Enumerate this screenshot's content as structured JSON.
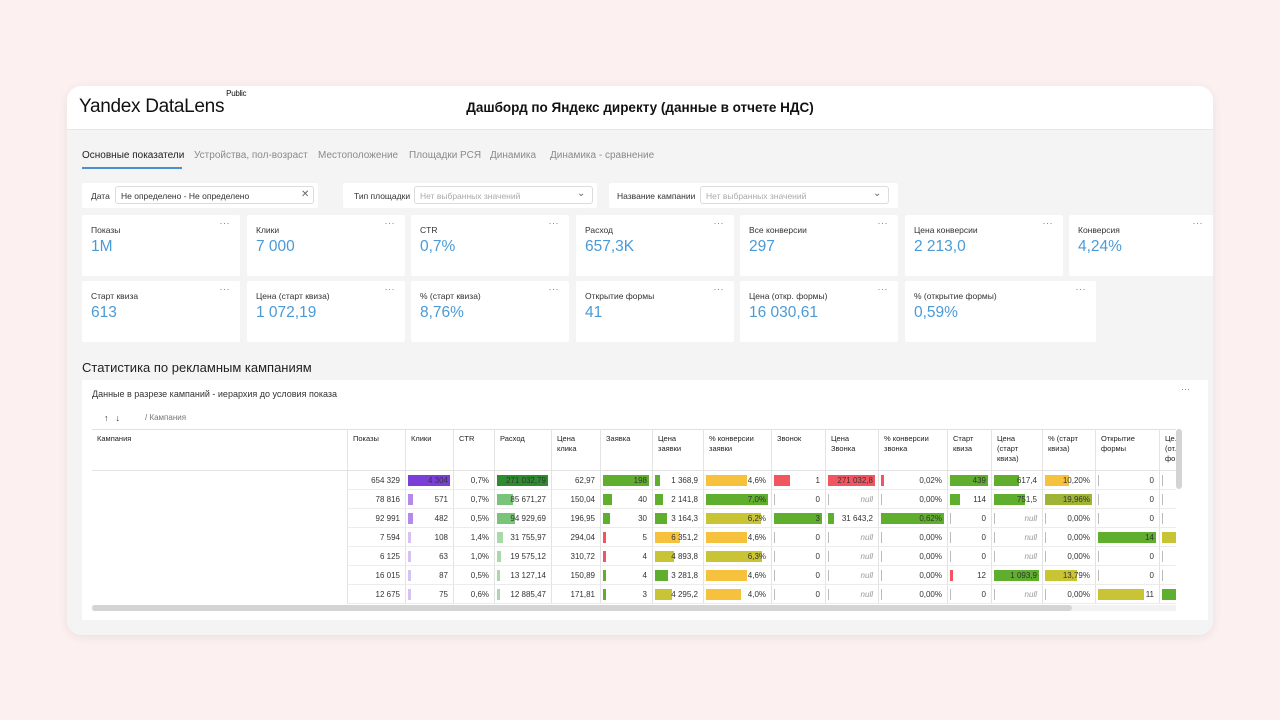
{
  "app": {
    "logo": "Yandex DataLens",
    "logo_badge": "Public",
    "dashboard_title": "Дашборд по Яндекс директу (данные в отчете НДС)"
  },
  "tabs": [
    {
      "label": "Основные показатели",
      "active": true
    },
    {
      "label": "Устройства, пол-возраст"
    },
    {
      "label": "Местоположение"
    },
    {
      "label": "Площадки РСЯ"
    },
    {
      "label": "Динамика"
    },
    {
      "label": "Динамика - сравнение"
    }
  ],
  "filters": {
    "date": {
      "label": "Дата",
      "value": "Не определено - Не определено"
    },
    "platform": {
      "label": "Тип площадки",
      "placeholder": "Нет выбранных значений"
    },
    "campaign": {
      "label": "Название кампании",
      "placeholder": "Нет выбранных значений"
    }
  },
  "kpis_row1": [
    {
      "label": "Показы",
      "value": "1M"
    },
    {
      "label": "Клики",
      "value": "7 000"
    },
    {
      "label": "CTR",
      "value": "0,7%"
    },
    {
      "label": "Расход",
      "value": "657,3K"
    },
    {
      "label": "Все конверсии",
      "value": "297"
    },
    {
      "label": "Цена конверсии",
      "value": "2 213,0"
    },
    {
      "label": "Конверсия",
      "value": "4,24%"
    }
  ],
  "kpis_row2": [
    {
      "label": "Старт квиза",
      "value": "613"
    },
    {
      "label": "Цена (старт квиза)",
      "value": "1 072,19"
    },
    {
      "label": "% (старт квиза)",
      "value": "8,76%"
    },
    {
      "label": "Открытие формы",
      "value": "41"
    },
    {
      "label": "Цена (откр. формы)",
      "value": "16 030,61"
    },
    {
      "label": "% (открытие формы)",
      "value": "0,59%"
    }
  ],
  "kpi_menu": "···",
  "section": {
    "title": "Статистика по рекламным кампаниям"
  },
  "table": {
    "subtitle": "Данные в разрезе кампаний - иерархия до условия показа",
    "menu": "···",
    "sort_up": "↑",
    "sort_down": "↓",
    "breadcrumb": "/ Кампания",
    "columns": [
      "Кампания",
      "Показы",
      "Клики",
      "CTR",
      "Расход",
      "Цена клика",
      "Заявка",
      "Цена заявки",
      "% конверсии заявки",
      "Звонок",
      "Цена Звонка",
      "% конверсии звонка",
      "Старт квиза",
      "Цена (старт квиза)",
      "% (старт квиза)",
      "Открытие формы",
      "Це... (от... фо..."
    ],
    "rows": [
      [
        "",
        "654 329",
        "4 304",
        "0,7%",
        "271 032,79",
        "62,97",
        "198",
        "1 368,9",
        "4,6%",
        "1",
        "271 032,8",
        "0,02%",
        "439",
        "617,4",
        "10,20%",
        "0",
        ""
      ],
      [
        "",
        "78 816",
        "571",
        "0,7%",
        "85 671,27",
        "150,04",
        "40",
        "2 141,8",
        "7,0%",
        "0",
        "null",
        "0,00%",
        "114",
        "751,5",
        "19,96%",
        "0",
        ""
      ],
      [
        "",
        "92 991",
        "482",
        "0,5%",
        "94 929,69",
        "196,95",
        "30",
        "3 164,3",
        "6,2%",
        "3",
        "31 643,2",
        "0,62%",
        "0",
        "null",
        "0,00%",
        "0",
        ""
      ],
      [
        "",
        "7 594",
        "108",
        "1,4%",
        "31 755,97",
        "294,04",
        "5",
        "6 351,2",
        "4,6%",
        "0",
        "null",
        "0,00%",
        "0",
        "null",
        "0,00%",
        "14",
        ""
      ],
      [
        "",
        "6 125",
        "63",
        "1,0%",
        "19 575,12",
        "310,72",
        "4",
        "4 893,8",
        "6,3%",
        "0",
        "null",
        "0,00%",
        "0",
        "null",
        "0,00%",
        "0",
        ""
      ],
      [
        "",
        "16 015",
        "87",
        "0,5%",
        "13 127,14",
        "150,89",
        "4",
        "3 281,8",
        "4,6%",
        "0",
        "null",
        "0,00%",
        "12",
        "1 093,9",
        "13,79%",
        "0",
        ""
      ],
      [
        "",
        "12 675",
        "75",
        "0,6%",
        "12 885,47",
        "171,81",
        "3",
        "4 295,2",
        "4,0%",
        "0",
        "null",
        "0,00%",
        "0",
        "null",
        "0,00%",
        "11",
        ""
      ]
    ],
    "bars": {
      "2": {
        "fracs": [
          1,
          0.13,
          0.11,
          0.03,
          0.02,
          0.02,
          0.02
        ],
        "colors": [
          "#7b3fd8",
          "#b48ae8",
          "#b48ae8",
          "#d6c2f2",
          "#d6c2f2",
          "#d6c2f2",
          "#d6c2f2"
        ]
      },
      "4": {
        "fracs": [
          1,
          0.32,
          0.35,
          0.12,
          0.07,
          0.05,
          0.05
        ],
        "colors": [
          "#2e8b30",
          "#7ac47a",
          "#7ac47a",
          "#a9d9a9",
          "#a9d9a9",
          "#a9d9a9",
          "#a9d9a9"
        ]
      },
      "6": {
        "fracs": [
          1,
          0.2,
          0.15,
          0.03,
          0.02,
          0.02,
          0.02
        ],
        "colors": [
          "#5fae2e",
          "#5fae2e",
          "#5fae2e",
          "#f25560",
          "#f25560",
          "#5fae2e",
          "#5fae2e"
        ]
      },
      "7": {
        "fracs": [
          0.12,
          0.18,
          0.27,
          0.55,
          0.42,
          0.28,
          0.37
        ],
        "colors": [
          "#5fae2e",
          "#5fae2e",
          "#5fae2e",
          "#f6c23e",
          "#c9c436",
          "#5fae2e",
          "#c9c436"
        ]
      },
      "8": {
        "fracs": [
          0.66,
          1,
          0.89,
          0.66,
          0.9,
          0.66,
          0.57
        ],
        "colors": [
          "#f6c23e",
          "#5fae2e",
          "#c9c436",
          "#f6c23e",
          "#c9c436",
          "#f6c23e",
          "#f6c23e"
        ]
      },
      "9": {
        "fracs": [
          0.33,
          0,
          1,
          0,
          0,
          0,
          0
        ],
        "colors": [
          "#f25560",
          "#f25560",
          "#5fae2e",
          "#f25560",
          "#f25560",
          "#f25560",
          "#f25560"
        ]
      },
      "10": {
        "fracs": [
          1,
          0,
          0.12,
          0,
          0,
          0,
          0
        ],
        "colors": [
          "#f25560",
          "#f25560",
          "#5fae2e",
          "#f25560",
          "#f25560",
          "#f25560",
          "#f25560"
        ]
      },
      "11": {
        "fracs": [
          0.03,
          0,
          1,
          0,
          0,
          0,
          0
        ],
        "colors": [
          "#f25560",
          "#f25560",
          "#5fae2e",
          "#f25560",
          "#f25560",
          "#f25560",
          "#f25560"
        ]
      },
      "12": {
        "fracs": [
          1,
          0.26,
          0,
          0,
          0,
          0.03,
          0
        ],
        "colors": [
          "#5fae2e",
          "#5fae2e",
          "#5fae2e",
          "#5fae2e",
          "#5fae2e",
          "#f25560",
          "#5fae2e"
        ]
      },
      "13": {
        "fracs": [
          0.56,
          0.69,
          0,
          0,
          0,
          1,
          0
        ],
        "colors": [
          "#5fae2e",
          "#5fae2e",
          "#5fae2e",
          "#5fae2e",
          "#5fae2e",
          "#5fae2e",
          "#5fae2e"
        ]
      },
      "14": {
        "fracs": [
          0.51,
          1,
          0,
          0,
          0,
          0.69,
          0
        ],
        "colors": [
          "#f6c23e",
          "#9fb436",
          "#f6c23e",
          "#f6c23e",
          "#f6c23e",
          "#c9c436",
          "#f6c23e"
        ]
      },
      "15": {
        "fracs": [
          0,
          0,
          0,
          1,
          0,
          0,
          0.79
        ],
        "colors": [
          "#5fae2e",
          "#5fae2e",
          "#5fae2e",
          "#5fae2e",
          "#5fae2e",
          "#5fae2e",
          "#c9c436"
        ]
      },
      "16": {
        "fracs": [
          0,
          0,
          0,
          1,
          0,
          0,
          1
        ],
        "colors": [
          "#c9c436",
          "#c9c436",
          "#c9c436",
          "#c9c436",
          "#c9c436",
          "#c9c436",
          "#5fae2e"
        ]
      }
    }
  }
}
